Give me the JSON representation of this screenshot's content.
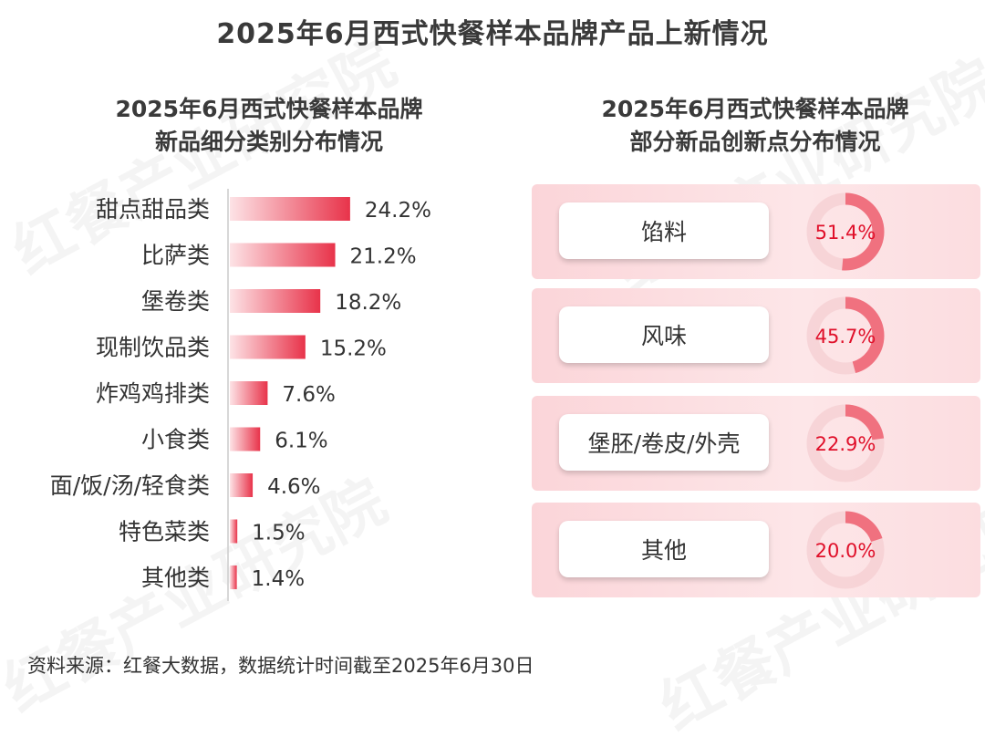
{
  "title": "2025年6月西式快餐样本品牌产品上新情况",
  "left_subtitle": [
    "2025年6月西式快餐样本品牌",
    "新品细分类别分布情况"
  ],
  "right_subtitle": [
    "2025年6月西式快餐样本品牌",
    "部分新品创新点分布情况"
  ],
  "watermark": "红餐产业研究院",
  "source": "资料来源：红餐大数据，数据统计时间截至2025年6月30日",
  "colors": {
    "bar_start": "#fde3e6",
    "bar_end": "#e8334a",
    "donut_fill": "#f0717f",
    "donut_track": "#f2c6cb",
    "pct_text": "#e0102a"
  },
  "chart_data": [
    {
      "type": "bar",
      "orientation": "horizontal",
      "categories": [
        "甜点甜品类",
        "比萨类",
        "堡卷类",
        "现制饮品类",
        "炸鸡鸡排类",
        "小食类",
        "面/饭/汤/轻食类",
        "特色菜类",
        "其他类"
      ],
      "values": [
        24.2,
        21.2,
        18.2,
        15.2,
        7.6,
        6.1,
        4.6,
        1.5,
        1.4
      ],
      "value_labels": [
        "24.2%",
        "21.2%",
        "18.2%",
        "15.2%",
        "7.6%",
        "6.1%",
        "4.6%",
        "1.5%",
        "1.4%"
      ],
      "unit": "%"
    },
    {
      "type": "pie",
      "style": "donut-per-item",
      "categories": [
        "馅料",
        "风味",
        "堡胚/卷皮/外壳",
        "其他"
      ],
      "values": [
        51.4,
        45.7,
        22.9,
        20.0
      ],
      "value_labels": [
        "51.4%",
        "45.7%",
        "22.9%",
        "20.0%"
      ]
    }
  ]
}
